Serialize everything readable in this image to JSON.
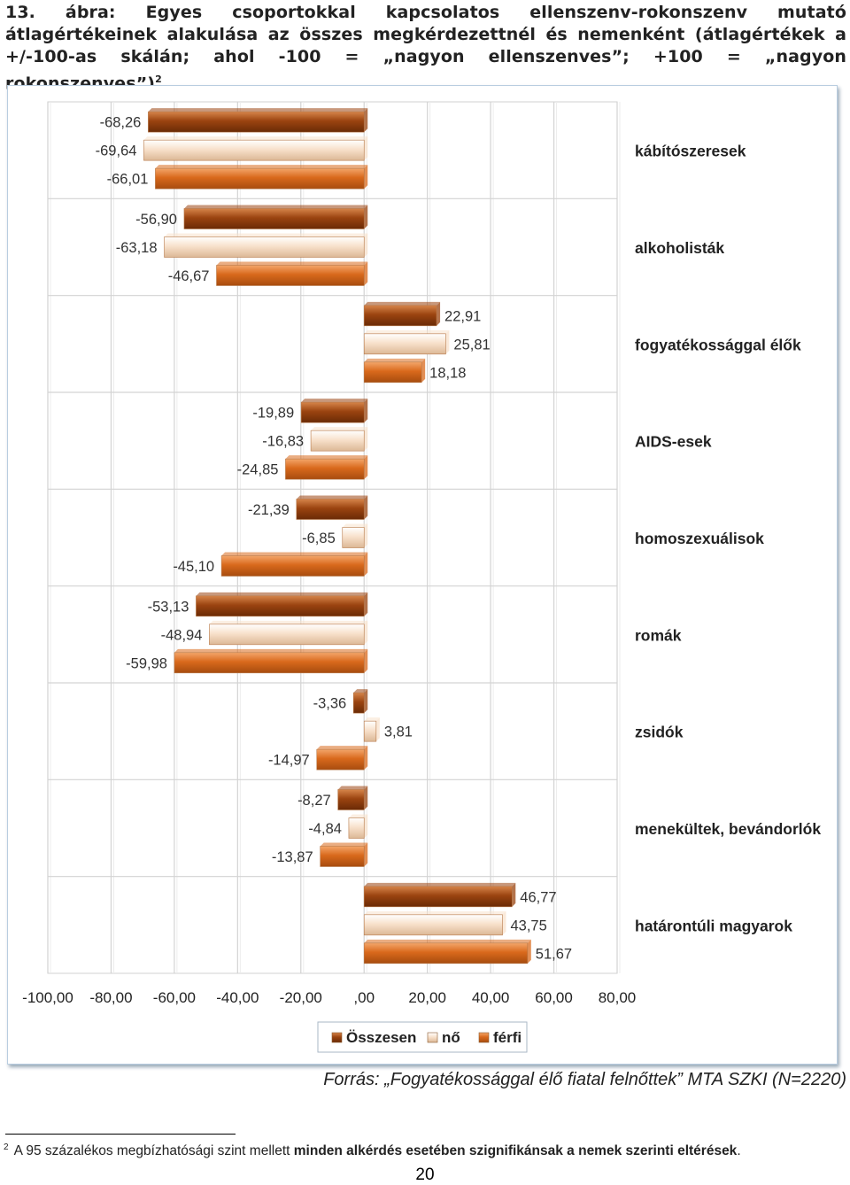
{
  "title": {
    "text": "13. ábra: Egyes csoportokkal kapcsolatos ellenszenv-rokonszenv mutató átlagértékeinek alakulása az összes megkérdezettnél és nemenként (átlagértékek a +/-100-as skálán; ahol -100 = „nagyon ellenszenves”; +100 = „nagyon rokonszenves”)",
    "footnote_ref": "2"
  },
  "chart_data": {
    "type": "bar",
    "orientation": "horizontal",
    "categories": [
      "kábítószeresek",
      "alkoholisták",
      "fogyatékossággal élők",
      "AIDS-esek",
      "homoszexuálisok",
      "romák",
      "zsidók",
      "menekültek, bevándorlók",
      "határontúli magyarok"
    ],
    "series": [
      {
        "name": "Összesen",
        "color": "#9b4410",
        "values": [
          -68.26,
          -56.9,
          22.91,
          -19.89,
          -21.39,
          -53.13,
          -3.36,
          -8.27,
          46.77
        ],
        "labels": [
          "-68,26",
          "-56,90",
          "22,91",
          "-19,89",
          "-21,39",
          "-53,13",
          "-3,36",
          "-8,27",
          "46,77"
        ]
      },
      {
        "name": "nő",
        "color": "#f8e1cc",
        "values": [
          -69.64,
          -63.18,
          25.81,
          -16.83,
          -6.85,
          -48.94,
          3.81,
          -4.84,
          43.75
        ],
        "labels": [
          "-69,64",
          "-63,18",
          "25,81",
          "-16,83",
          "-6,85",
          "-48,94",
          "3,81",
          "-4,84",
          "43,75"
        ]
      },
      {
        "name": "férfi",
        "color": "#d9691c",
        "values": [
          -66.01,
          -46.67,
          18.18,
          -24.85,
          -45.1,
          -59.98,
          -14.97,
          -13.87,
          51.67
        ],
        "labels": [
          "-66,01",
          "-46,67",
          "18,18",
          "-24,85",
          "-45,10",
          "-59,98",
          "-14,97",
          "-13,87",
          "51,67"
        ]
      }
    ],
    "xlim": [
      -100,
      80
    ],
    "x_ticks": [
      -100,
      -80,
      -60,
      -40,
      -20,
      0,
      20,
      40,
      60,
      80
    ],
    "x_tick_labels": [
      "-100,00",
      "-80,00",
      "-60,00",
      "-40,00",
      "-20,00",
      ",00",
      "20,00",
      "40,00",
      "60,00",
      "80,00"
    ],
    "grid": true,
    "legend_position": "bottom"
  },
  "source": "Forrás: „Fogyatékossággal élő fiatal felnőttek” MTA SZKI (N=2220)",
  "footnote": {
    "mark": "2",
    "text_plain": "A 95 százalékos megbízhatósági szint mellett ",
    "text_bold": "minden alkérdés esetében szignifikánsak a nemek szerinti eltérések",
    "text_end": "."
  },
  "page_number": "20"
}
